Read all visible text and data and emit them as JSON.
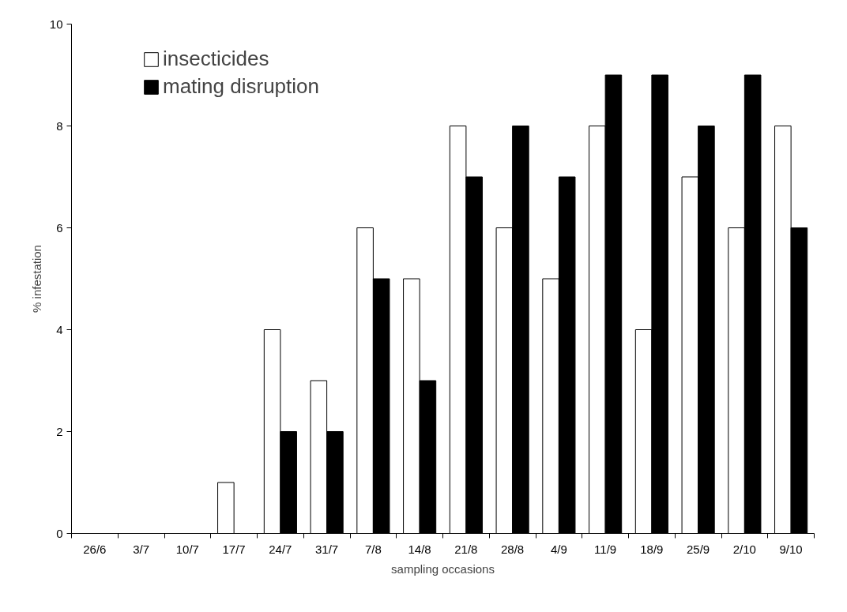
{
  "chart_data": {
    "type": "bar",
    "xlabel": "sampling occasions",
    "ylabel": "% infestation",
    "categories": [
      "26/6",
      "3/7",
      "10/7",
      "17/7",
      "24/7",
      "31/7",
      "7/8",
      "14/8",
      "21/8",
      "28/8",
      "4/9",
      "11/9",
      "18/9",
      "25/9",
      "2/10",
      "9/10"
    ],
    "series": [
      {
        "name": "insecticides",
        "color": "#ffffff",
        "values": [
          0,
          0,
          0,
          1,
          4,
          3,
          6,
          5,
          8,
          6,
          5,
          8,
          4,
          7,
          6,
          8
        ]
      },
      {
        "name": "mating disruption",
        "color": "#000000",
        "values": [
          0,
          0,
          0,
          0,
          2,
          2,
          5,
          3,
          7,
          8,
          7,
          9,
          9,
          8,
          9,
          6
        ]
      }
    ],
    "ylim": [
      0,
      10
    ],
    "yticks": [
      0,
      2,
      4,
      6,
      8,
      10
    ],
    "grid": false,
    "legend": "top left"
  }
}
